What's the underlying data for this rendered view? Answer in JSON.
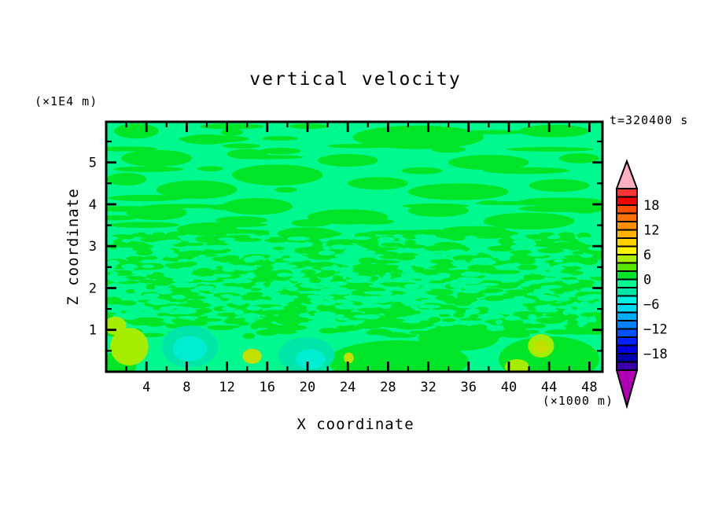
{
  "window": {
    "background": "#FFFFFF",
    "text_color": "#000000",
    "frame_color": "#000000"
  },
  "chart_data": {
    "type": "filled-contour",
    "title": "vertical velocity",
    "time_label": "t=320400 s",
    "x_axis": {
      "label": "X coordinate",
      "unit": "(×1000 m)",
      "ticks": [
        4,
        8,
        12,
        16,
        20,
        24,
        28,
        32,
        36,
        40,
        44,
        48
      ],
      "minor_ticks": [
        2,
        6,
        10,
        14,
        18,
        22,
        26,
        30,
        34,
        38,
        42,
        46
      ],
      "range": [
        0,
        49.3
      ],
      "grid": false
    },
    "y_axis": {
      "label": "Z coordinate",
      "unit": "(×1E4 m)",
      "ticks": [
        1,
        2,
        3,
        4,
        5
      ],
      "minor_ticks": [
        0.5,
        1.5,
        2.5,
        3.5,
        4.5,
        5.5
      ],
      "range": [
        0,
        5.97
      ],
      "grid": false
    },
    "colorbar": {
      "labels": [
        18,
        12,
        6,
        0,
        -6,
        -12,
        -18
      ],
      "cell_interval": 2,
      "cell_range": [
        -22,
        22
      ],
      "over_color": "#FFAFC0",
      "under_color": "#B000B4",
      "cells": [
        "#FF3434",
        "#F20000",
        "#FF4E00",
        "#FF7100",
        "#FF9100",
        "#FFB100",
        "#FFD100",
        "#FFF200",
        "#ACEE00",
        "#58E600",
        "#00E528",
        "#00F98E",
        "#00E5A8",
        "#00F0E0",
        "#00D8F4",
        "#00ACFF",
        "#007FFF",
        "#0051FF",
        "#0023FF",
        "#0000E0",
        "#0000AE",
        "#3C00A8"
      ],
      "legend_position": "right"
    },
    "field": {
      "background": "#00F98E",
      "palette": {
        "green": "#00E528",
        "teal": "#00E5A8",
        "aqua": "#00EDD2",
        "chartreuse": "#A6EC00",
        "yellowgreen": "#C3DF00"
      },
      "streaks": [
        {
          "x": 3,
          "z": 5.75,
          "rx": 2.2,
          "rz": 0.18
        },
        {
          "x": 10,
          "z": 5.55,
          "rx": 2.5,
          "rz": 0.12
        },
        {
          "x": 31,
          "z": 5.6,
          "rx": 6.5,
          "rz": 0.28
        },
        {
          "x": 44.5,
          "z": 5.75,
          "rx": 3.5,
          "rz": 0.15
        },
        {
          "x": 5,
          "z": 5.1,
          "rx": 3.5,
          "rz": 0.2
        },
        {
          "x": 14,
          "z": 5.2,
          "rx": 2,
          "rz": 0.12
        },
        {
          "x": 24,
          "z": 5.05,
          "rx": 3,
          "rz": 0.15
        },
        {
          "x": 38,
          "z": 5.0,
          "rx": 4,
          "rz": 0.18
        },
        {
          "x": 47,
          "z": 5.1,
          "rx": 2,
          "rz": 0.12
        },
        {
          "x": 2,
          "z": 4.6,
          "rx": 2,
          "rz": 0.15
        },
        {
          "x": 9,
          "z": 4.35,
          "rx": 4,
          "rz": 0.22
        },
        {
          "x": 17,
          "z": 4.7,
          "rx": 4.5,
          "rz": 0.25
        },
        {
          "x": 27,
          "z": 4.5,
          "rx": 3,
          "rz": 0.15
        },
        {
          "x": 35,
          "z": 4.3,
          "rx": 5,
          "rz": 0.2
        },
        {
          "x": 45,
          "z": 4.45,
          "rx": 3,
          "rz": 0.15
        },
        {
          "x": 5,
          "z": 3.8,
          "rx": 3,
          "rz": 0.18
        },
        {
          "x": 15,
          "z": 3.95,
          "rx": 3.5,
          "rz": 0.2
        },
        {
          "x": 24,
          "z": 3.7,
          "rx": 4,
          "rz": 0.18
        },
        {
          "x": 33,
          "z": 3.85,
          "rx": 3,
          "rz": 0.15
        },
        {
          "x": 42,
          "z": 3.6,
          "rx": 4.5,
          "rz": 0.2
        },
        {
          "x": 10,
          "z": 3.4,
          "rx": 3,
          "rz": 0.15
        },
        {
          "x": 20,
          "z": 3.3,
          "rx": 3,
          "rz": 0.15
        },
        {
          "x": 38,
          "z": 3.3,
          "rx": 2.5,
          "rz": 0.12
        },
        {
          "x": 47.5,
          "z": 3.9,
          "rx": 1.8,
          "rz": 0.12
        }
      ],
      "features": [
        {
          "x": 29,
          "z": 0.25,
          "rx": 7,
          "rz": 0.5,
          "c": "green"
        },
        {
          "x": 44,
          "z": 0.3,
          "rx": 5,
          "rz": 0.55,
          "c": "green"
        },
        {
          "x": 0.8,
          "z": 0.15,
          "rx": 2.2,
          "rz": 0.3,
          "c": "green"
        },
        {
          "x": 35,
          "z": 0.8,
          "rx": 4,
          "rz": 0.3,
          "c": "green"
        },
        {
          "x": 8.3,
          "z": 0.6,
          "rx": 2.8,
          "rz": 0.5,
          "c": "teal"
        },
        {
          "x": 8.3,
          "z": 0.55,
          "rx": 1.7,
          "rz": 0.3,
          "c": "aqua"
        },
        {
          "x": 19.9,
          "z": 0.4,
          "rx": 2.8,
          "rz": 0.42,
          "c": "teal"
        },
        {
          "x": 20.3,
          "z": 0.3,
          "rx": 1.5,
          "rz": 0.24,
          "c": "aqua"
        },
        {
          "x": 2.3,
          "z": 0.6,
          "rx": 1.9,
          "rz": 0.45,
          "c": "chartreuse"
        },
        {
          "x": 0.9,
          "z": 1.1,
          "rx": 1.1,
          "rz": 0.22,
          "c": "chartreuse"
        },
        {
          "x": 14.5,
          "z": 0.37,
          "rx": 0.95,
          "rz": 0.18,
          "c": "yellowgreen"
        },
        {
          "x": 24.1,
          "z": 0.33,
          "rx": 0.5,
          "rz": 0.13,
          "c": "yellowgreen"
        },
        {
          "x": 43.2,
          "z": 0.62,
          "rx": 1.3,
          "rz": 0.28,
          "c": "chartreuse"
        },
        {
          "x": 43.2,
          "z": 0.6,
          "rx": 0.7,
          "rz": 0.15,
          "c": "yellowgreen"
        },
        {
          "x": 40.8,
          "z": 0.12,
          "rx": 1.2,
          "rz": 0.18,
          "c": "chartreuse"
        }
      ],
      "speckle": {
        "seed": 11,
        "count": 650,
        "z_range": [
          1.05,
          3.3
        ]
      },
      "speckle_bg_cut": {
        "seed": 77,
        "count": 300,
        "z_range": [
          1.1,
          3.25
        ]
      },
      "upper_speckle": {
        "seed": 5,
        "count": 42,
        "z_range": [
          3.3,
          5.9
        ]
      },
      "lower_speckle": {
        "seed": 23,
        "count": 55,
        "z_range": [
          0.85,
          1.25
        ]
      }
    }
  }
}
